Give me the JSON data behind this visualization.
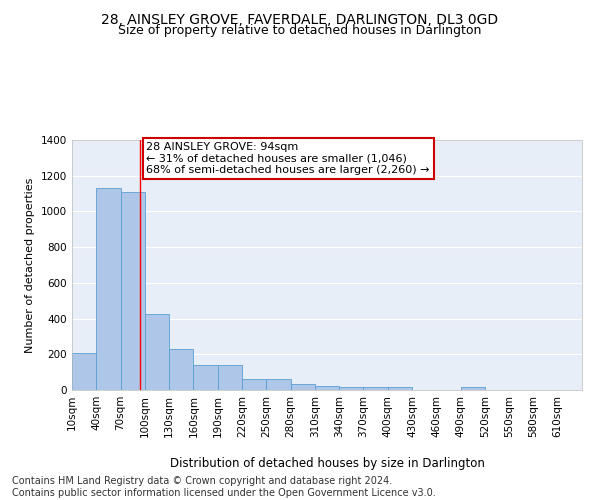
{
  "title": "28, AINSLEY GROVE, FAVERDALE, DARLINGTON, DL3 0GD",
  "subtitle": "Size of property relative to detached houses in Darlington",
  "xlabel": "Distribution of detached houses by size in Darlington",
  "ylabel": "Number of detached properties",
  "bin_labels": [
    "10sqm",
    "40sqm",
    "70sqm",
    "100sqm",
    "130sqm",
    "160sqm",
    "190sqm",
    "220sqm",
    "250sqm",
    "280sqm",
    "310sqm",
    "340sqm",
    "370sqm",
    "400sqm",
    "430sqm",
    "460sqm",
    "490sqm",
    "520sqm",
    "550sqm",
    "580sqm",
    "610sqm"
  ],
  "bar_values": [
    210,
    1130,
    1110,
    425,
    230,
    140,
    140,
    60,
    60,
    35,
    20,
    15,
    15,
    15,
    0,
    0,
    15,
    0,
    0,
    0,
    0
  ],
  "bar_color": "#aec6e8",
  "bar_edge_color": "#5a9fd4",
  "background_color": "#e8eef8",
  "grid_color": "#ffffff",
  "red_line_x": 94,
  "annotation_text": "28 AINSLEY GROVE: 94sqm\n← 31% of detached houses are smaller (1,046)\n68% of semi-detached houses are larger (2,260) →",
  "annotation_box_color": "#ffffff",
  "annotation_box_edge": "#cc0000",
  "ylim": [
    0,
    1400
  ],
  "yticks": [
    0,
    200,
    400,
    600,
    800,
    1000,
    1200,
    1400
  ],
  "footer_text": "Contains HM Land Registry data © Crown copyright and database right 2024.\nContains public sector information licensed under the Open Government Licence v3.0.",
  "title_fontsize": 10,
  "subtitle_fontsize": 9,
  "xlabel_fontsize": 8.5,
  "ylabel_fontsize": 8,
  "annotation_fontsize": 8,
  "footer_fontsize": 7,
  "tick_fontsize": 7.5
}
